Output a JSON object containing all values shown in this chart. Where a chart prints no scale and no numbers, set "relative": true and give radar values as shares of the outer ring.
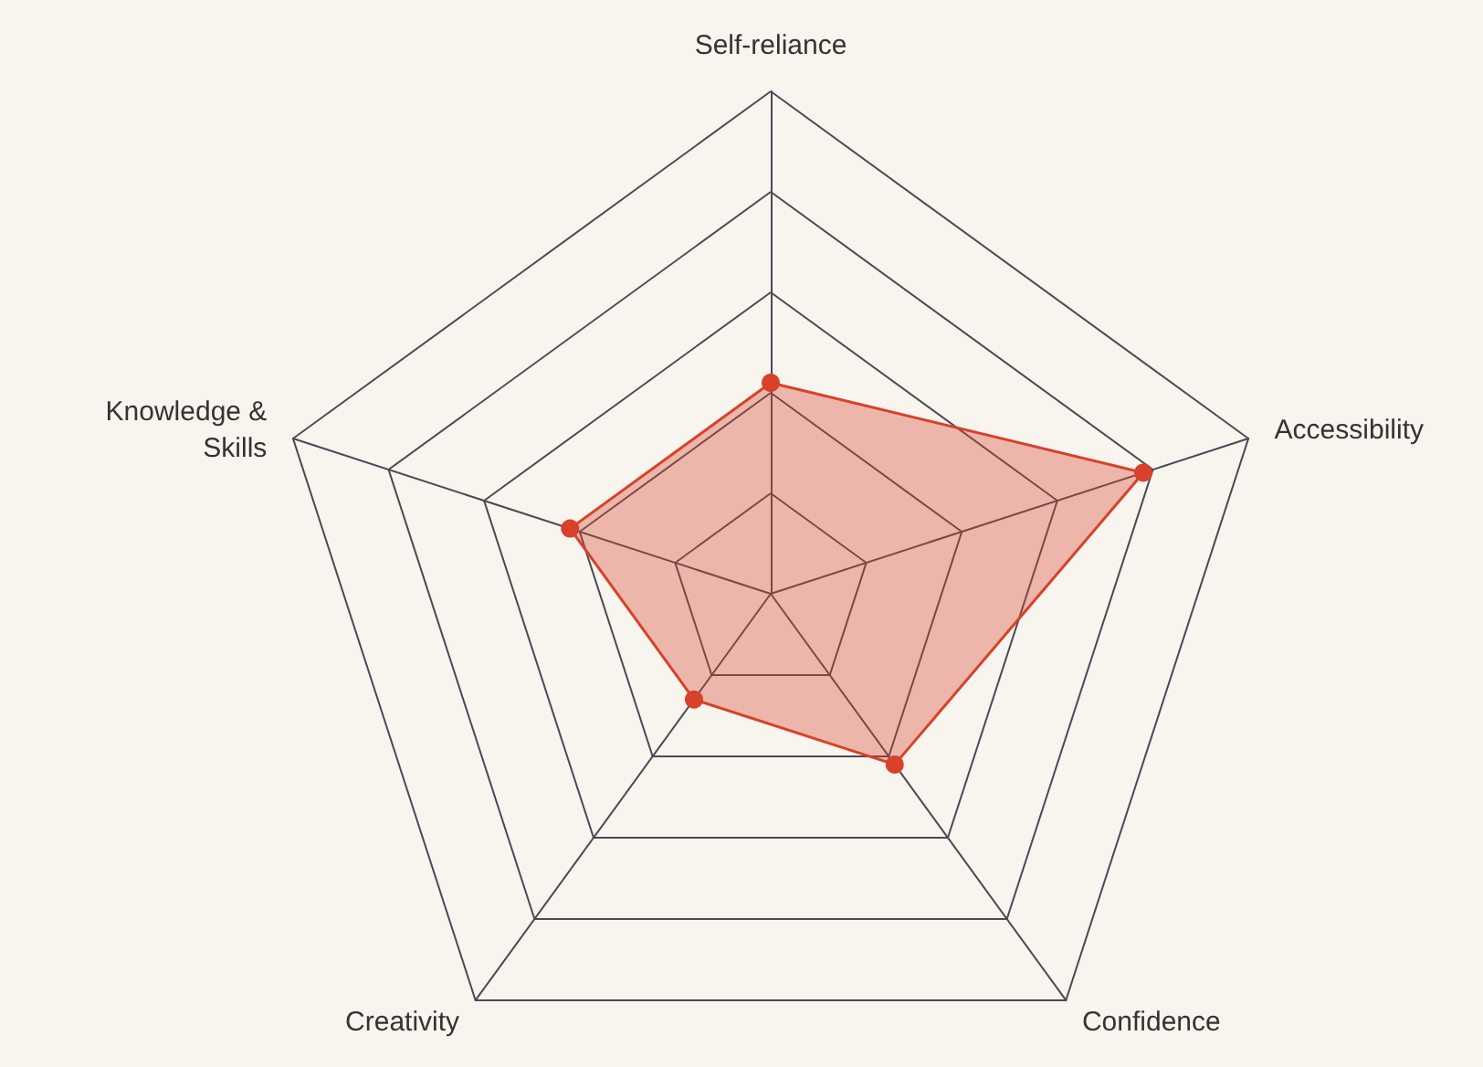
{
  "chart_data": {
    "type": "radar",
    "relative": true,
    "categories": [
      "Self-reliance",
      "Accessibility",
      "Confidence",
      "Creativity",
      "Knowledge &\nSkills"
    ],
    "series": [
      {
        "color": "#d9412b",
        "values": [
          0.42,
          0.78,
          0.42,
          0.26,
          0.42
        ]
      }
    ],
    "marker": "circle"
  }
}
